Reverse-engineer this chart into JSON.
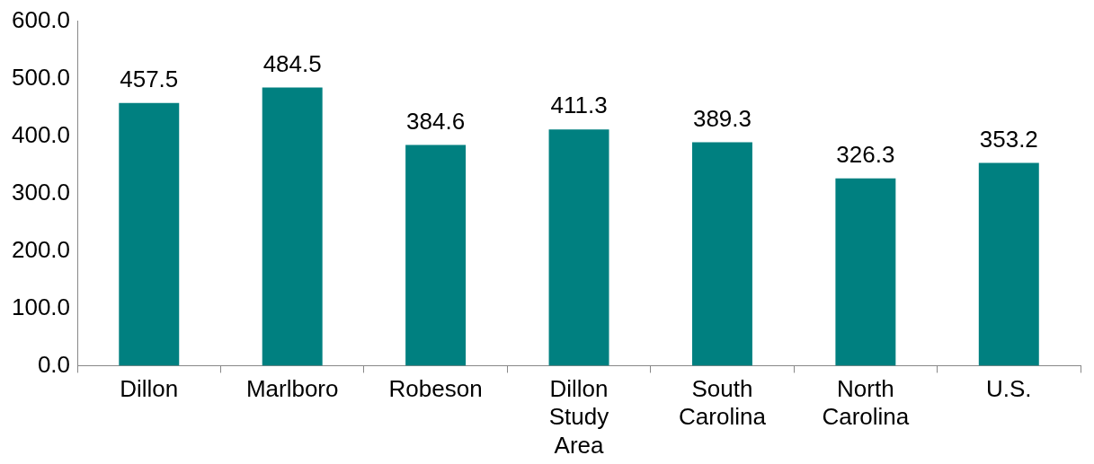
{
  "chart_data": {
    "type": "bar",
    "categories": [
      "Dillon",
      "Marlboro",
      "Robeson",
      "Dillon Study Area",
      "South Carolina",
      "North Carolina",
      "U.S."
    ],
    "values": [
      457.5,
      484.5,
      384.6,
      411.3,
      389.3,
      326.3,
      353.2
    ],
    "color": "#008080",
    "ylim": [
      0,
      600
    ],
    "yticks": [
      {
        "value": 0,
        "label": "0.0"
      },
      {
        "value": 100,
        "label": "100.0"
      },
      {
        "value": 200,
        "label": "200.0"
      },
      {
        "value": 300,
        "label": "300.0"
      },
      {
        "value": 400,
        "label": "400.0"
      },
      {
        "value": 500,
        "label": "500.0"
      },
      {
        "value": 600,
        "label": "600.0"
      }
    ],
    "data_labels": true,
    "grid": false,
    "legend": false
  }
}
